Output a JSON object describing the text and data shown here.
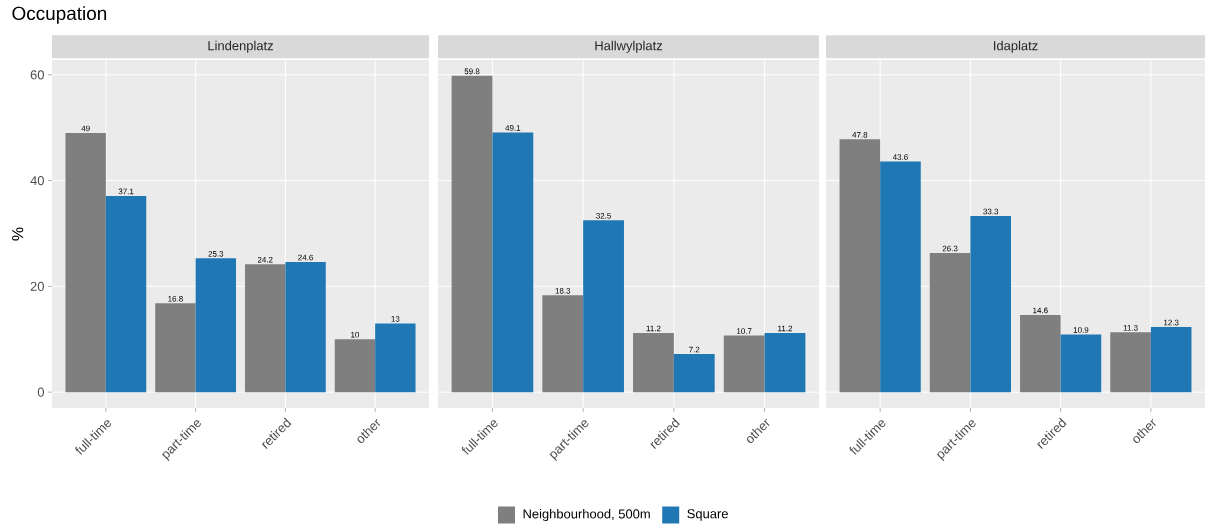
{
  "chart_data": [
    {
      "type": "bar",
      "title": "Occupation",
      "subtitle": "Lindenplatz",
      "ylabel": "%",
      "categories": [
        "full-time",
        "part-time",
        "retired",
        "other"
      ],
      "series": [
        {
          "name": "Neighbourhood, 500m",
          "color": "#7f7f7f",
          "values": [
            49,
            16.8,
            24.2,
            10
          ]
        },
        {
          "name": "Square",
          "color": "#1f78b4",
          "values": [
            37.1,
            25.3,
            24.6,
            13
          ]
        }
      ],
      "ylim": [
        -3,
        62.8
      ],
      "yticks": [
        0,
        20,
        40,
        60
      ],
      "grid": true,
      "data_labels": true,
      "legend": "bottom"
    },
    {
      "type": "bar",
      "subtitle": "Hallwylplatz",
      "categories": [
        "full-time",
        "part-time",
        "retired",
        "other"
      ],
      "series": [
        {
          "color": "#7f7f7f",
          "values": [
            59.8,
            18.3,
            11.2,
            10.7
          ]
        },
        {
          "color": "#1f78b4",
          "values": [
            49.1,
            32.5,
            7.2,
            11.2
          ]
        }
      ],
      "ylim": [
        -3,
        62.8
      ],
      "yticks": [
        0,
        20,
        40,
        60
      ],
      "grid": true,
      "data_labels": true,
      "tick_labels": "x"
    },
    {
      "type": "bar",
      "subtitle": "Idaplatz",
      "categories": [
        "full-time",
        "part-time",
        "retired",
        "other"
      ],
      "series": [
        {
          "color": "#7f7f7f",
          "values": [
            47.8,
            26.3,
            14.6,
            11.3
          ]
        },
        {
          "color": "#1f78b4",
          "values": [
            43.6,
            33.3,
            10.9,
            12.3
          ]
        }
      ],
      "ylim": [
        -3,
        62.8
      ],
      "yticks": [
        0,
        20,
        40,
        60
      ],
      "grid": true,
      "data_labels": true,
      "tick_labels": "x"
    }
  ]
}
